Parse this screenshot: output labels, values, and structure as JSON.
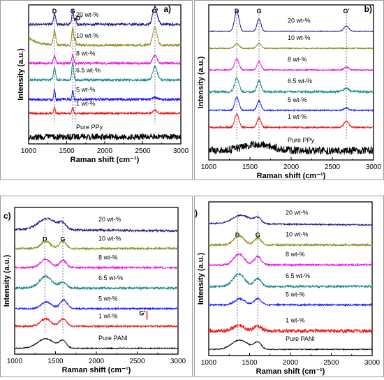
{
  "chart_data": [
    {
      "type": "line",
      "panel_label": "a)",
      "xlabel": "Raman shift (cm⁻¹)",
      "ylabel": "Intensity (a.u.)",
      "xlim": [
        1000,
        3000
      ],
      "xticks": [
        1000,
        1500,
        2000,
        2500,
        3000
      ],
      "peak_markers": [
        {
          "label": "D",
          "x": 1340
        },
        {
          "label": "G",
          "x": 1580
        },
        {
          "label": "D'",
          "x": 1615
        },
        {
          "label": "G'",
          "x": 2660
        }
      ],
      "series": [
        {
          "name": "20 wt-%",
          "color": "#1a1a8c",
          "baseline": 8.6,
          "noise": 0.09,
          "peaks": [
            [
              1340,
              0.8,
              20
            ],
            [
              1580,
              1.0,
              18
            ],
            [
              1615,
              0.4,
              12
            ],
            [
              2660,
              1.25,
              40
            ]
          ]
        },
        {
          "name": "10 wt-%",
          "color": "#8c8c1a",
          "baseline": 7.1,
          "noise": 0.08,
          "peaks": [
            [
              1340,
              1.0,
              22
            ],
            [
              1580,
              1.2,
              18
            ],
            [
              1615,
              0.4,
              12
            ],
            [
              2660,
              1.3,
              40
            ]
          ],
          "decay": 0.55
        },
        {
          "name": "8 wt-%",
          "color": "#e619e6",
          "baseline": 5.8,
          "noise": 0.08,
          "peaks": [
            [
              1340,
              0.5,
              20
            ],
            [
              1580,
              0.6,
              18
            ],
            [
              2660,
              0.55,
              40
            ]
          ]
        },
        {
          "name": "6.5 wt-%",
          "color": "#1a8c8c",
          "baseline": 4.6,
          "noise": 0.08,
          "peaks": [
            [
              1340,
              0.9,
              20
            ],
            [
              1580,
              1.35,
              16
            ],
            [
              2660,
              0.95,
              40
            ]
          ]
        },
        {
          "name": "5 wt-%",
          "color": "#1a1aff",
          "baseline": 3.2,
          "noise": 0.09,
          "peaks": [
            [
              1340,
              0.8,
              12
            ],
            [
              1580,
              0.65,
              12
            ],
            [
              2660,
              0.15,
              40
            ]
          ]
        },
        {
          "name": "1 wt-%",
          "color": "#e61919",
          "baseline": 2.2,
          "noise": 0.07,
          "peaks": [
            [
              1340,
              0.45,
              14
            ],
            [
              1580,
              0.45,
              14
            ],
            [
              2660,
              0.2,
              40
            ]
          ]
        },
        {
          "name": "Pure PPy",
          "color": "#000000",
          "baseline": 0.5,
          "noise": 0.22,
          "peaks": []
        }
      ]
    },
    {
      "type": "line",
      "panel_label": "b)",
      "xlabel": "Raman shift (cm⁻¹)",
      "ylabel": "Intensity (a.u.)",
      "xlim": [
        1000,
        3000
      ],
      "xticks": [
        1000,
        1500,
        2000,
        2500,
        3000
      ],
      "peak_markers": [
        {
          "label": "D",
          "x": 1340
        },
        {
          "label": "G",
          "x": 1610
        },
        {
          "label": "G'",
          "x": 2670
        }
      ],
      "series": [
        {
          "name": "20 wt-%",
          "color": "#1a1a8c",
          "baseline": 8.3,
          "noise": 0.02,
          "peaks": [
            [
              1340,
              1.3,
              38
            ],
            [
              1610,
              0.8,
              34
            ],
            [
              2670,
              0.35,
              40
            ]
          ]
        },
        {
          "name": "10 wt-%",
          "color": "#8c8c1a",
          "baseline": 7.2,
          "noise": 0.03,
          "peaks": [
            [
              1340,
              0.3,
              40
            ],
            [
              1610,
              0.3,
              40
            ]
          ]
        },
        {
          "name": "8 wt-%",
          "color": "#e619e6",
          "baseline": 5.8,
          "noise": 0.04,
          "peaks": [
            [
              1340,
              0.7,
              38
            ],
            [
              1610,
              0.55,
              34
            ],
            [
              2670,
              0.2,
              40
            ]
          ]
        },
        {
          "name": "6.5 wt-%",
          "color": "#1a8c8c",
          "baseline": 4.4,
          "noise": 0.07,
          "peaks": [
            [
              1340,
              0.85,
              38
            ],
            [
              1610,
              0.7,
              34
            ],
            [
              2670,
              0.25,
              40
            ]
          ]
        },
        {
          "name": "5 wt-%",
          "color": "#1a1aff",
          "baseline": 3.2,
          "noise": 0.04,
          "peaks": [
            [
              1340,
              0.85,
              36
            ],
            [
              1610,
              0.6,
              34
            ],
            [
              2670,
              0.15,
              40
            ]
          ]
        },
        {
          "name": "1 wt-%",
          "color": "#e61919",
          "baseline": 2.1,
          "noise": 0.05,
          "peaks": [
            [
              1340,
              0.85,
              36
            ],
            [
              1610,
              0.6,
              34
            ],
            [
              2670,
              0.4,
              40
            ]
          ]
        },
        {
          "name": "Pure PPy",
          "color": "#000000",
          "baseline": 0.6,
          "noise": 0.25,
          "peaks": [
            [
              1600,
              0.4,
              260
            ]
          ]
        }
      ]
    },
    {
      "type": "line",
      "panel_label": "c)",
      "xlabel": "Raman shift (cm⁻¹)",
      "ylabel": "Intensity (a.u.)",
      "xlim": [
        1000,
        3000
      ],
      "xticks": [
        1000,
        1500,
        2000,
        2500,
        3000
      ],
      "peak_markers": [
        {
          "label": "D",
          "x": 1370
        },
        {
          "label": "G",
          "x": 1590
        }
      ],
      "extra_label": {
        "label": "G'",
        "x": 2620
      },
      "series": [
        {
          "name": "20 wt-%",
          "color": "#1a1a8c",
          "baseline": 8.5,
          "noise": 0.07,
          "peaks": [
            [
              1400,
              0.75,
              160
            ],
            [
              1590,
              0.35,
              60
            ]
          ],
          "slope": -0.1
        },
        {
          "name": "10 wt-%",
          "color": "#8c8c1a",
          "baseline": 7.2,
          "noise": 0.06,
          "peaks": [
            [
              1380,
              0.5,
              80
            ],
            [
              1590,
              0.5,
              60
            ]
          ]
        },
        {
          "name": "8 wt-%",
          "color": "#e619e6",
          "baseline": 5.9,
          "noise": 0.06,
          "peaks": [
            [
              1380,
              0.55,
              90
            ],
            [
              1590,
              0.5,
              60
            ]
          ]
        },
        {
          "name": "6.5 wt-%",
          "color": "#1a8c8c",
          "baseline": 4.5,
          "noise": 0.08,
          "peaks": [
            [
              1380,
              0.8,
              110
            ],
            [
              1590,
              0.4,
              60
            ]
          ]
        },
        {
          "name": "5 wt-%",
          "color": "#1a1aff",
          "baseline": 3.1,
          "noise": 0.05,
          "peaks": [
            [
              1390,
              0.45,
              90
            ],
            [
              1600,
              0.6,
              60
            ]
          ]
        },
        {
          "name": "1 wt-%",
          "color": "#e61919",
          "baseline": 1.9,
          "noise": 0.06,
          "peaks": [
            [
              1380,
              0.5,
              90
            ],
            [
              1590,
              0.5,
              60
            ]
          ]
        },
        {
          "name": "Pure PANI",
          "color": "#000000",
          "baseline": 0.4,
          "noise": 0.03,
          "peaks": [
            [
              1380,
              0.65,
              140
            ],
            [
              1590,
              0.5,
              60
            ]
          ]
        }
      ]
    },
    {
      "type": "line",
      "panel_label": "d)",
      "xlabel": "Raman shift (cm⁻¹)",
      "ylabel": "Intensity (a.u.)",
      "xlim": [
        1000,
        3000
      ],
      "xticks": [
        1000,
        1500,
        2000,
        2500,
        3000
      ],
      "peak_markers": [
        {
          "label": "D",
          "x": 1350
        },
        {
          "label": "G",
          "x": 1600
        }
      ],
      "series": [
        {
          "name": "20 wt-%",
          "color": "#1a1a8c",
          "baseline": 8.6,
          "noise": 0.04,
          "peaks": [
            [
              1400,
              0.55,
              150
            ],
            [
              1600,
              0.35,
              60
            ]
          ],
          "slope": -0.1
        },
        {
          "name": "10 wt-%",
          "color": "#8c8c1a",
          "baseline": 7.2,
          "noise": 0.06,
          "peaks": [
            [
              1370,
              0.6,
              90
            ],
            [
              1600,
              0.45,
              60
            ]
          ]
        },
        {
          "name": "8 wt-%",
          "color": "#e619e6",
          "baseline": 5.9,
          "noise": 0.06,
          "peaks": [
            [
              1370,
              0.7,
              90
            ],
            [
              1600,
              0.55,
              60
            ]
          ]
        },
        {
          "name": "6.5 wt-%",
          "color": "#1a8c8c",
          "baseline": 4.5,
          "noise": 0.07,
          "peaks": [
            [
              1370,
              0.8,
              100
            ],
            [
              1600,
              0.5,
              60
            ]
          ]
        },
        {
          "name": "5 wt-%",
          "color": "#1a1aff",
          "baseline": 3.3,
          "noise": 0.05,
          "peaks": [
            [
              1380,
              0.4,
              90
            ],
            [
              1600,
              0.4,
              60
            ]
          ]
        },
        {
          "name": "1 wt-%",
          "color": "#e61919",
          "baseline": 1.6,
          "noise": 0.12,
          "peaks": [
            [
              1370,
              0.35,
              100
            ],
            [
              1600,
              0.3,
              70
            ]
          ]
        },
        {
          "name": "Pure PANI",
          "color": "#000000",
          "baseline": 0.4,
          "noise": 0.03,
          "peaks": [
            [
              1380,
              0.6,
              140
            ],
            [
              1600,
              0.45,
              60
            ]
          ]
        }
      ]
    }
  ]
}
